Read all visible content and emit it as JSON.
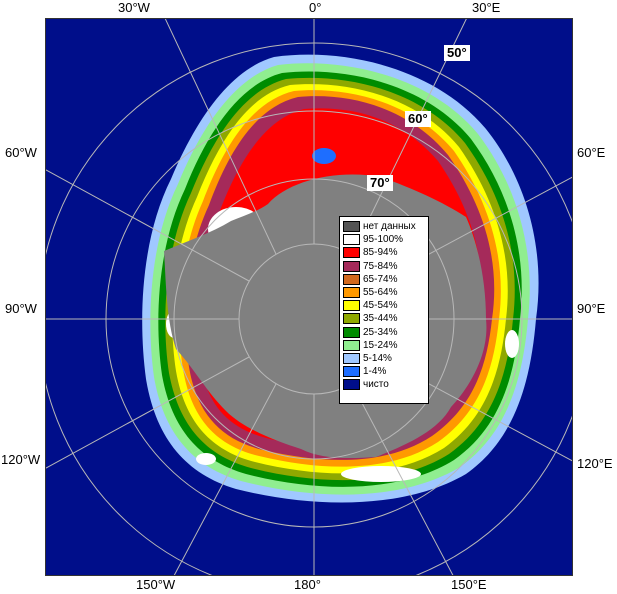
{
  "map": {
    "edge_labels": {
      "top": [
        "30°W",
        "0°",
        "30°E"
      ],
      "left": [
        "60°W",
        "90°W",
        "120°W"
      ],
      "right": [
        "60°E",
        "90°E",
        "120°E"
      ],
      "bottom": [
        "150°W",
        "180°",
        "150°E"
      ]
    },
    "latitude_labels": [
      "50°",
      "60°",
      "70°"
    ],
    "colors": {
      "ocean": "#000e8a",
      "land": "#808080",
      "no_data": "#545454",
      "grid": "#b8b8b8"
    }
  },
  "legend": {
    "items": [
      {
        "label": "нет данных",
        "color": "#545454"
      },
      {
        "label": "95-100%",
        "color": "#ffffff"
      },
      {
        "label": "85-94%",
        "color": "#ff0000"
      },
      {
        "label": "75-84%",
        "color": "#a52a5a"
      },
      {
        "label": "65-74%",
        "color": "#d2691e"
      },
      {
        "label": "55-64%",
        "color": "#ff9900"
      },
      {
        "label": "45-54%",
        "color": "#ffff00"
      },
      {
        "label": "35-44%",
        "color": "#8fa800"
      },
      {
        "label": "25-34%",
        "color": "#008c00"
      },
      {
        "label": "15-24%",
        "color": "#90ee90"
      },
      {
        "label": "5-14%",
        "color": "#a0c8ff"
      },
      {
        "label": "1-4%",
        "color": "#1e6eff"
      },
      {
        "label": "чисто",
        "color": "#000e8a"
      }
    ]
  }
}
